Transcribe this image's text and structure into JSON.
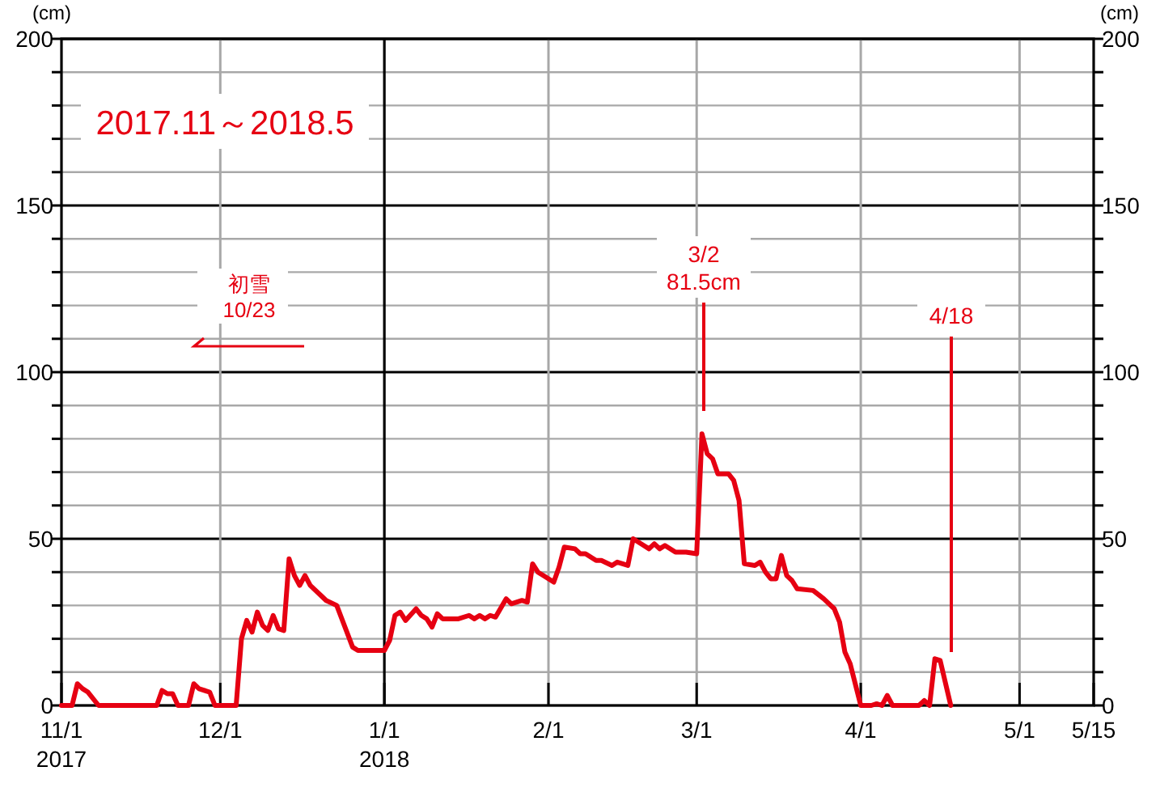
{
  "chart_data": {
    "type": "line",
    "title": "2017.11～2018.5",
    "ylabel": "(cm)",
    "y2label": "(cm)",
    "x": [
      "2017-11-01",
      "2017-11-03",
      "2017-11-04",
      "2017-11-05",
      "2017-11-06",
      "2017-11-08",
      "2017-11-19",
      "2017-11-20",
      "2017-11-21",
      "2017-11-22",
      "2017-11-23",
      "2017-11-25",
      "2017-11-26",
      "2017-11-27",
      "2017-11-29",
      "2017-11-30",
      "2017-12-04",
      "2017-12-05",
      "2017-12-06",
      "2017-12-07",
      "2017-12-08",
      "2017-12-09",
      "2017-12-10",
      "2017-12-11",
      "2017-12-12",
      "2017-12-13",
      "2017-12-14",
      "2017-12-15",
      "2017-12-16",
      "2017-12-17",
      "2017-12-18",
      "2017-12-20",
      "2017-12-21",
      "2017-12-23",
      "2017-12-26",
      "2017-12-27",
      "2018-01-01",
      "2018-01-02",
      "2018-01-03",
      "2018-01-04",
      "2018-01-05",
      "2018-01-07",
      "2018-01-08",
      "2018-01-09",
      "2018-01-10",
      "2018-01-11",
      "2018-01-12",
      "2018-01-15",
      "2018-01-17",
      "2018-01-18",
      "2018-01-19",
      "2018-01-20",
      "2018-01-21",
      "2018-01-22",
      "2018-01-24",
      "2018-01-25",
      "2018-01-27",
      "2018-01-28",
      "2018-01-29",
      "2018-01-30",
      "2018-01-31",
      "2018-02-02",
      "2018-02-03",
      "2018-02-04",
      "2018-02-06",
      "2018-02-07",
      "2018-02-08",
      "2018-02-10",
      "2018-02-11",
      "2018-02-13",
      "2018-02-14",
      "2018-02-16",
      "2018-02-17",
      "2018-02-19",
      "2018-02-20",
      "2018-02-21",
      "2018-02-22",
      "2018-02-23",
      "2018-02-25",
      "2018-02-27",
      "2018-03-01",
      "2018-03-02",
      "2018-03-03",
      "2018-03-04",
      "2018-03-05",
      "2018-03-07",
      "2018-03-08",
      "2018-03-09",
      "2018-03-10",
      "2018-03-12",
      "2018-03-13",
      "2018-03-14",
      "2018-03-15",
      "2018-03-16",
      "2018-03-17",
      "2018-03-18",
      "2018-03-19",
      "2018-03-20",
      "2018-03-23",
      "2018-03-25",
      "2018-03-27",
      "2018-03-28",
      "2018-03-29",
      "2018-03-30",
      "2018-04-01",
      "2018-04-03",
      "2018-04-04",
      "2018-04-05",
      "2018-04-06",
      "2018-04-07",
      "2018-04-12",
      "2018-04-13",
      "2018-04-14",
      "2018-04-15",
      "2018-04-16",
      "2018-04-18"
    ],
    "series": [
      {
        "color": "#e60012",
        "values": [
          0,
          0,
          6.5,
          5,
          4,
          0,
          0,
          4.5,
          3.5,
          3.5,
          0,
          0,
          6.5,
          5,
          4,
          0,
          0,
          20,
          25.5,
          22,
          28,
          24,
          22.5,
          27,
          23,
          22.5,
          44,
          39,
          36,
          39,
          36,
          33,
          31.5,
          30,
          17.5,
          16.5,
          16.5,
          19.5,
          27,
          28,
          25.5,
          29,
          27,
          26,
          23.5,
          27.5,
          26,
          26,
          27,
          26,
          27,
          26,
          27,
          26.5,
          32,
          30.5,
          31.5,
          31,
          42.5,
          40,
          39,
          37,
          41.5,
          47.5,
          47,
          45.5,
          45.5,
          43.5,
          43.5,
          42,
          43,
          42,
          50,
          48,
          47,
          48.5,
          47,
          48,
          46,
          46,
          45.5,
          81.5,
          75.5,
          74,
          69.5,
          69.5,
          67.5,
          61.5,
          42.5,
          42,
          43,
          40,
          38,
          38,
          45,
          39,
          37.5,
          35,
          34.5,
          32,
          29,
          25,
          16,
          12.5,
          0,
          0,
          0.5,
          0,
          3,
          0,
          0,
          1.5,
          0,
          14,
          13.5,
          0
        ]
      }
    ],
    "xlim": [
      "2017-11-01",
      "2018-05-15"
    ],
    "xticks": [
      {
        "value": "2017-11-01",
        "label": "11/1\n2017"
      },
      {
        "value": "2017-12-01",
        "label": "12/1"
      },
      {
        "value": "2018-01-01",
        "label": "1/1\n2018"
      },
      {
        "value": "2018-02-01",
        "label": "2/1"
      },
      {
        "value": "2018-03-01",
        "label": "3/1"
      },
      {
        "value": "2018-04-01",
        "label": "4/1"
      },
      {
        "value": "2018-05-01",
        "label": "5/1"
      },
      {
        "value": "2018-05-15",
        "label": "5/15"
      }
    ],
    "ylim": [
      0,
      200
    ],
    "yticks": [
      0,
      {
        "value": 10,
        "label": null
      },
      {
        "value": 20,
        "label": null
      },
      {
        "value": 30,
        "label": null
      },
      {
        "value": 40,
        "label": null
      },
      50,
      {
        "value": 60,
        "label": null
      },
      {
        "value": 70,
        "label": null
      },
      {
        "value": 80,
        "label": null
      },
      {
        "value": 90,
        "label": null
      },
      100,
      {
        "value": 110,
        "label": null
      },
      {
        "value": 120,
        "label": null
      },
      {
        "value": 130,
        "label": null
      },
      {
        "value": 140,
        "label": null
      },
      150,
      {
        "value": 160,
        "label": null
      },
      {
        "value": 170,
        "label": null
      },
      {
        "value": 180,
        "label": null
      },
      {
        "value": 190,
        "label": null
      },
      200
    ],
    "y2lim": [
      0,
      200
    ],
    "y2ticks": [
      0,
      {
        "value": 10,
        "label": null
      },
      {
        "value": 20,
        "label": null
      },
      {
        "value": 30,
        "label": null
      },
      {
        "value": 40,
        "label": null
      },
      50,
      {
        "value": 60,
        "label": null
      },
      {
        "value": 70,
        "label": null
      },
      {
        "value": 80,
        "label": null
      },
      {
        "value": 90,
        "label": null
      },
      100,
      {
        "value": 110,
        "label": null
      },
      {
        "value": 120,
        "label": null
      },
      {
        "value": 130,
        "label": null
      },
      {
        "value": 140,
        "label": null
      },
      150,
      {
        "value": 160,
        "label": null
      },
      {
        "value": 170,
        "label": null
      },
      {
        "value": 180,
        "label": null
      },
      {
        "value": 190,
        "label": null
      },
      200
    ],
    "grid": true,
    "marker": "none",
    "line_style": "solid",
    "annotations": [
      "初雪\n10/23",
      "3/2\n81.5cm",
      "4/18"
    ]
  }
}
